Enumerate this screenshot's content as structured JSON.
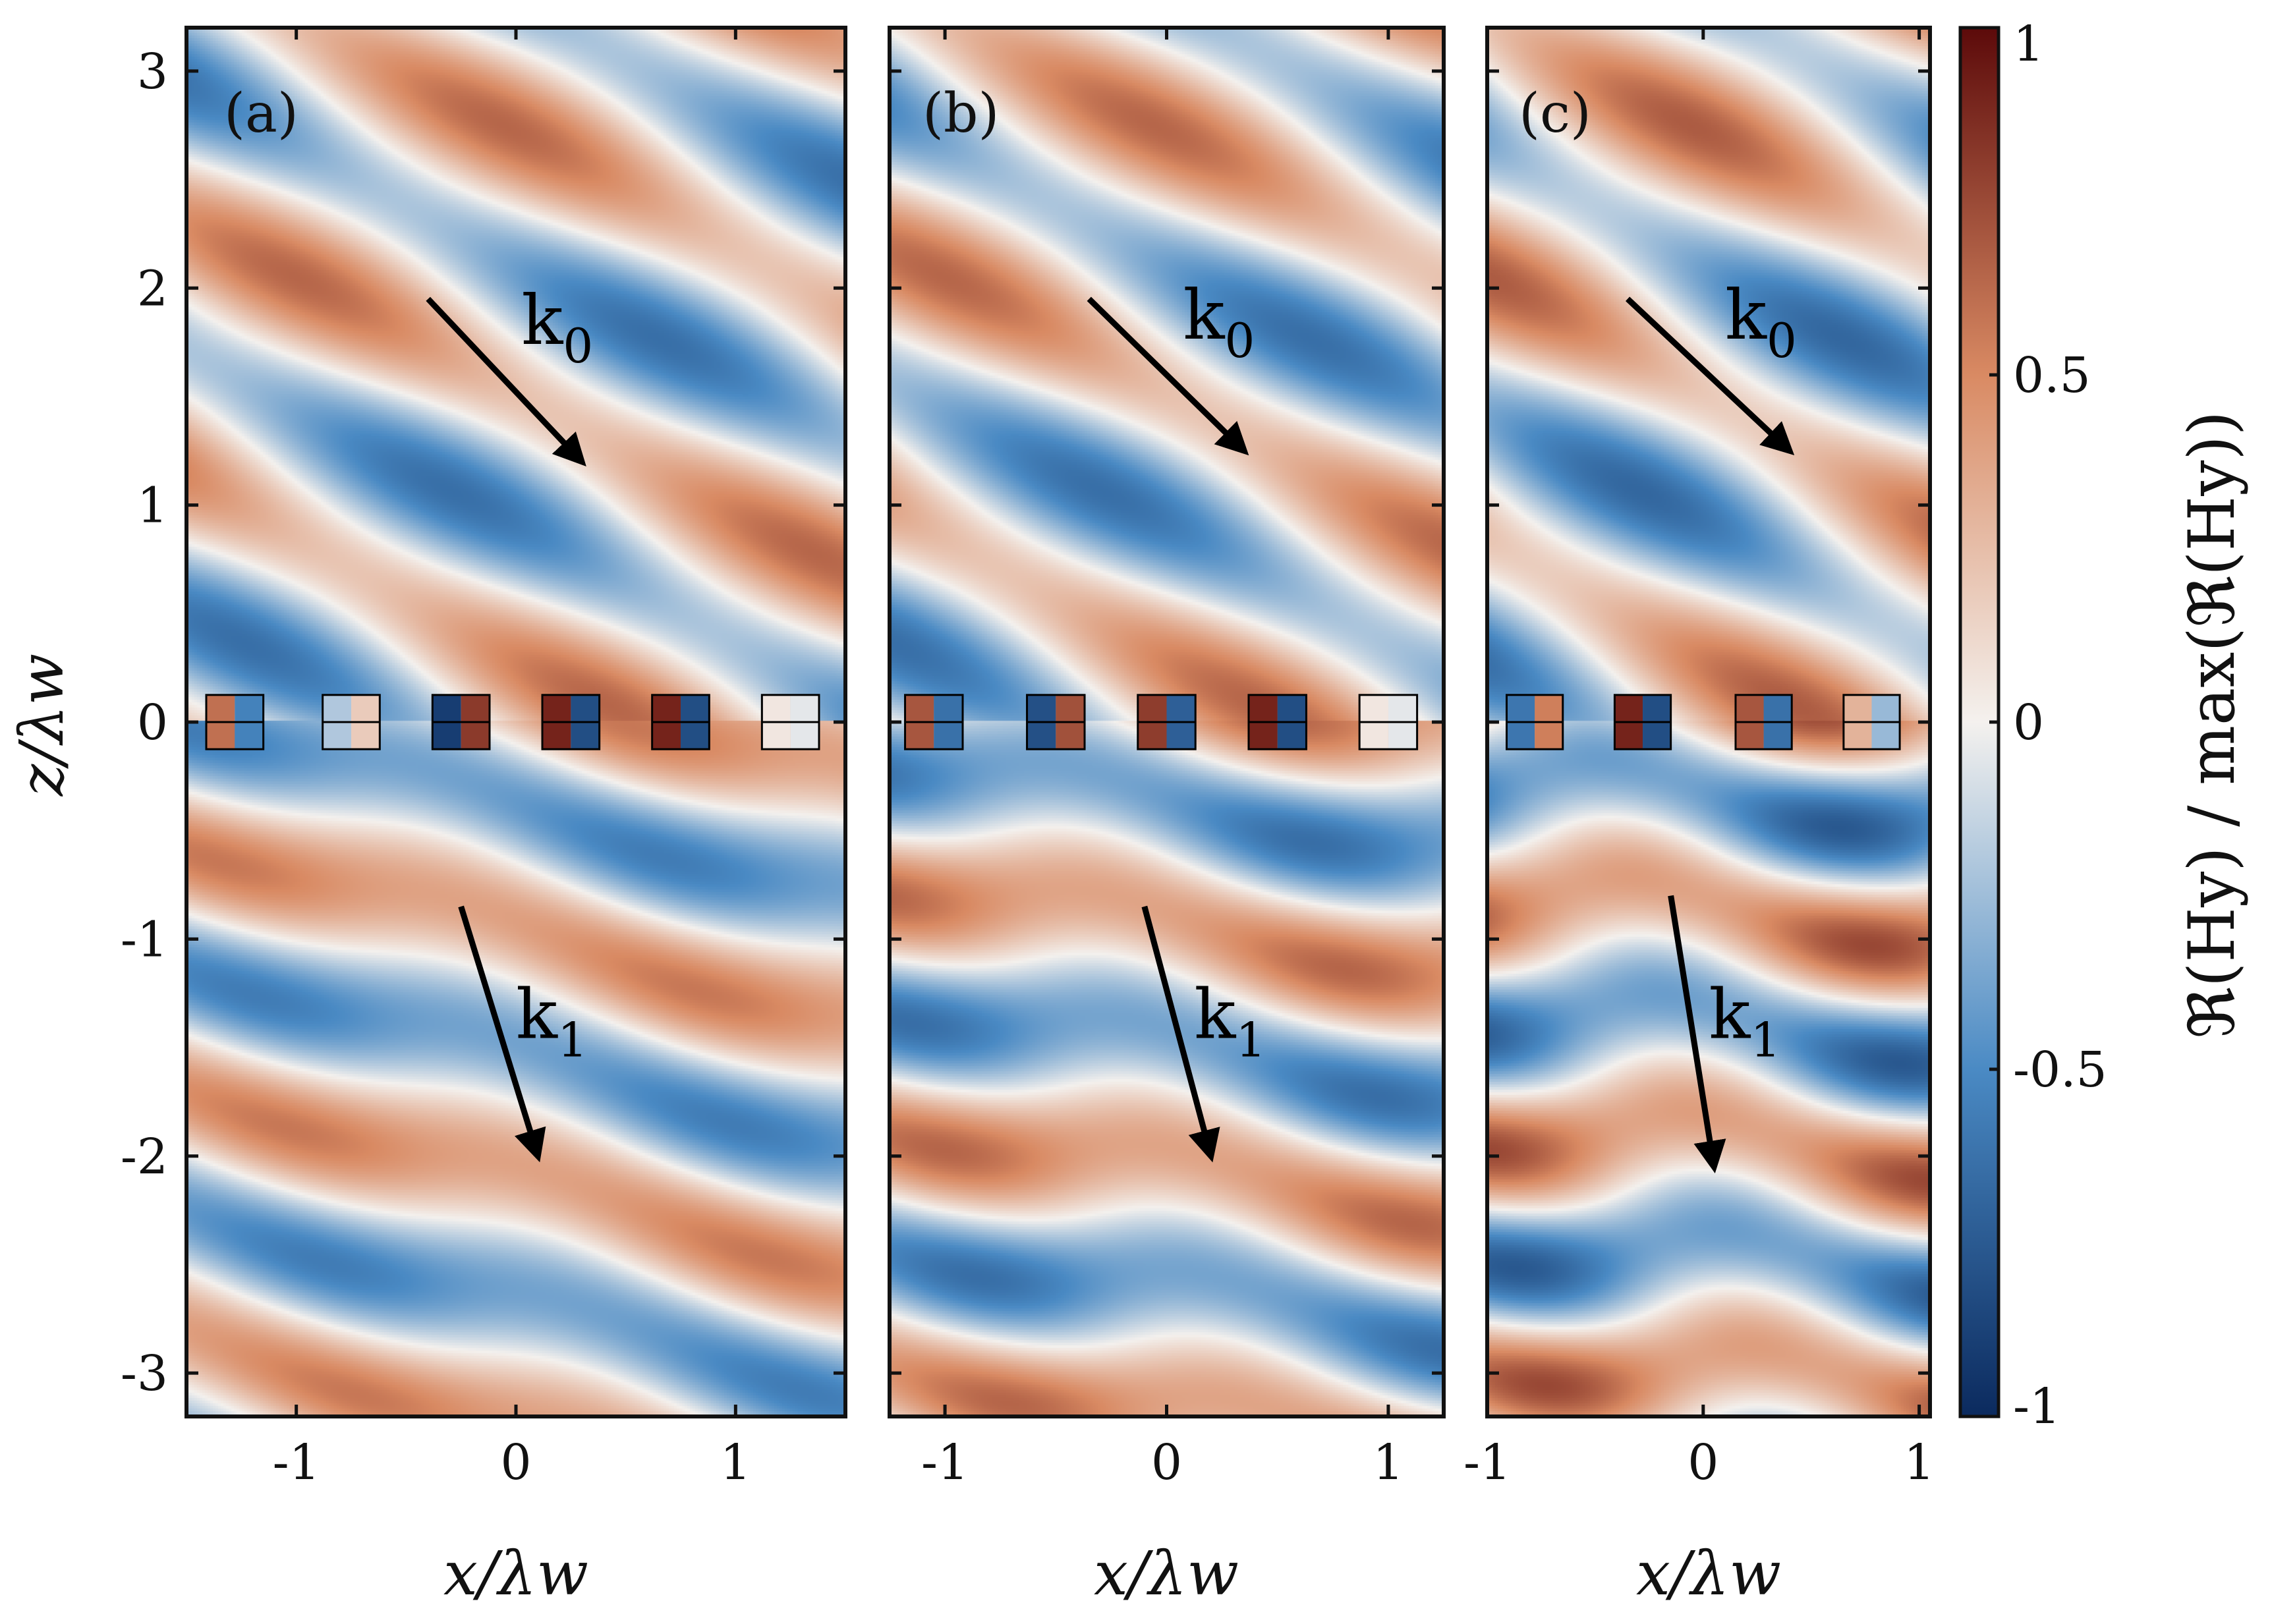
{
  "chart_data": [
    {
      "type": "heatmap",
      "panel_tag": "(a)",
      "xlabel": "x/λw",
      "ylabel": "z/λw",
      "xlim": [
        -1.5,
        1.5
      ],
      "ylim": [
        -3.2,
        3.2
      ],
      "xticks": [
        -1,
        0,
        1
      ],
      "yticks": [
        -3,
        -2,
        -1,
        0,
        1,
        2,
        3
      ],
      "xtick_labels": [
        "-1",
        "0",
        "1"
      ],
      "ytick_labels": [
        "-3",
        "-2",
        "-1",
        "0",
        "1",
        "2",
        "3"
      ],
      "field": {
        "ky_top": 5.2,
        "kx_top": 2.8,
        "ky_bottom": 5.5,
        "kx_bottom": 1.5,
        "beat_top": 0.25,
        "beat_bottom": 0.2
      },
      "blocks": [
        {
          "x": -1.28,
          "z": 0,
          "w": 0.26,
          "h": 0.25,
          "value": 0.6
        },
        {
          "x": -0.75,
          "z": 0,
          "w": 0.26,
          "h": 0.25,
          "value": -0.2
        },
        {
          "x": -0.25,
          "z": 0,
          "w": 0.26,
          "h": 0.25,
          "value": -0.9
        },
        {
          "x": 0.25,
          "z": 0,
          "w": 0.26,
          "h": 0.25,
          "value": 0.9
        },
        {
          "x": 0.75,
          "z": 0,
          "w": 0.26,
          "h": 0.25,
          "value": 0.9
        },
        {
          "x": 1.25,
          "z": 0,
          "w": 0.26,
          "h": 0.25,
          "value": 0.05
        }
      ],
      "arrows": [
        {
          "label": "k",
          "subscript": "0",
          "from": [
            -0.4,
            1.95
          ],
          "to": [
            0.3,
            1.2
          ]
        },
        {
          "label": "k",
          "subscript": "1",
          "from": [
            -0.25,
            -0.85
          ],
          "to": [
            0.1,
            -2.0
          ]
        }
      ]
    },
    {
      "type": "heatmap",
      "panel_tag": "(b)",
      "xlabel": "x/λw",
      "ylabel": "",
      "xlim": [
        -1.25,
        1.25
      ],
      "ylim": [
        -3.2,
        3.2
      ],
      "xticks": [
        -1,
        0,
        1
      ],
      "xtick_labels": [
        "-1",
        "0",
        "1"
      ],
      "field": {
        "ky_top": 5.2,
        "kx_top": 2.8,
        "ky_bottom": 5.6,
        "kx_bottom": 0.9,
        "beat_top": 0.25,
        "beat_bottom": 0.3
      },
      "blocks": [
        {
          "x": -1.05,
          "z": 0,
          "w": 0.26,
          "h": 0.25,
          "value": 0.7
        },
        {
          "x": -0.5,
          "z": 0,
          "w": 0.26,
          "h": 0.25,
          "value": -0.8
        },
        {
          "x": 0.0,
          "z": 0,
          "w": 0.26,
          "h": 0.25,
          "value": 0.8
        },
        {
          "x": 0.5,
          "z": 0,
          "w": 0.26,
          "h": 0.25,
          "value": 0.9
        },
        {
          "x": 1.0,
          "z": 0,
          "w": 0.26,
          "h": 0.25,
          "value": 0.05
        }
      ],
      "arrows": [
        {
          "label": "k",
          "subscript": "0",
          "from": [
            -0.35,
            1.95
          ],
          "to": [
            0.35,
            1.25
          ]
        },
        {
          "label": "k",
          "subscript": "1",
          "from": [
            -0.1,
            -0.85
          ],
          "to": [
            0.2,
            -2.0
          ]
        }
      ]
    },
    {
      "type": "heatmap",
      "panel_tag": "(c)",
      "xlabel": "x/λw",
      "ylabel": "",
      "xlim": [
        -1.0,
        1.05
      ],
      "ylim": [
        -3.2,
        3.2
      ],
      "xticks": [
        -1,
        0,
        1
      ],
      "xtick_labels": [
        "-1",
        "0",
        "1"
      ],
      "field": {
        "ky_top": 5.2,
        "kx_top": 2.8,
        "ky_bottom": 5.9,
        "kx_bottom": 0.4,
        "beat_top": 0.3,
        "beat_bottom": 0.45
      },
      "blocks": [
        {
          "x": -0.78,
          "z": 0,
          "w": 0.26,
          "h": 0.25,
          "value": -0.6
        },
        {
          "x": -0.28,
          "z": 0,
          "w": 0.26,
          "h": 0.25,
          "value": 0.9
        },
        {
          "x": 0.28,
          "z": 0,
          "w": 0.26,
          "h": 0.25,
          "value": 0.7
        },
        {
          "x": 0.78,
          "z": 0,
          "w": 0.26,
          "h": 0.25,
          "value": 0.3
        }
      ],
      "arrows": [
        {
          "label": "k",
          "subscript": "0",
          "from": [
            -0.35,
            1.95
          ],
          "to": [
            0.4,
            1.25
          ]
        },
        {
          "label": "k",
          "subscript": "1",
          "from": [
            -0.15,
            -0.8
          ],
          "to": [
            0.05,
            -2.05
          ]
        }
      ]
    }
  ],
  "colorbar": {
    "title": "ℜ(Hy) / max(ℜ(Hy))",
    "ticks": [
      1,
      0.5,
      0,
      -0.5,
      -1
    ],
    "tick_labels": [
      "1",
      "0.5",
      "0",
      "-0.5",
      "-1"
    ],
    "range": [
      -1,
      1
    ],
    "colors": {
      "neg_end": "#0b2a5e",
      "neg_mid": "#4a8ac4",
      "zero": "#f4f1ee",
      "pos_mid": "#d98a63",
      "pos_end": "#5c0a0a"
    }
  }
}
